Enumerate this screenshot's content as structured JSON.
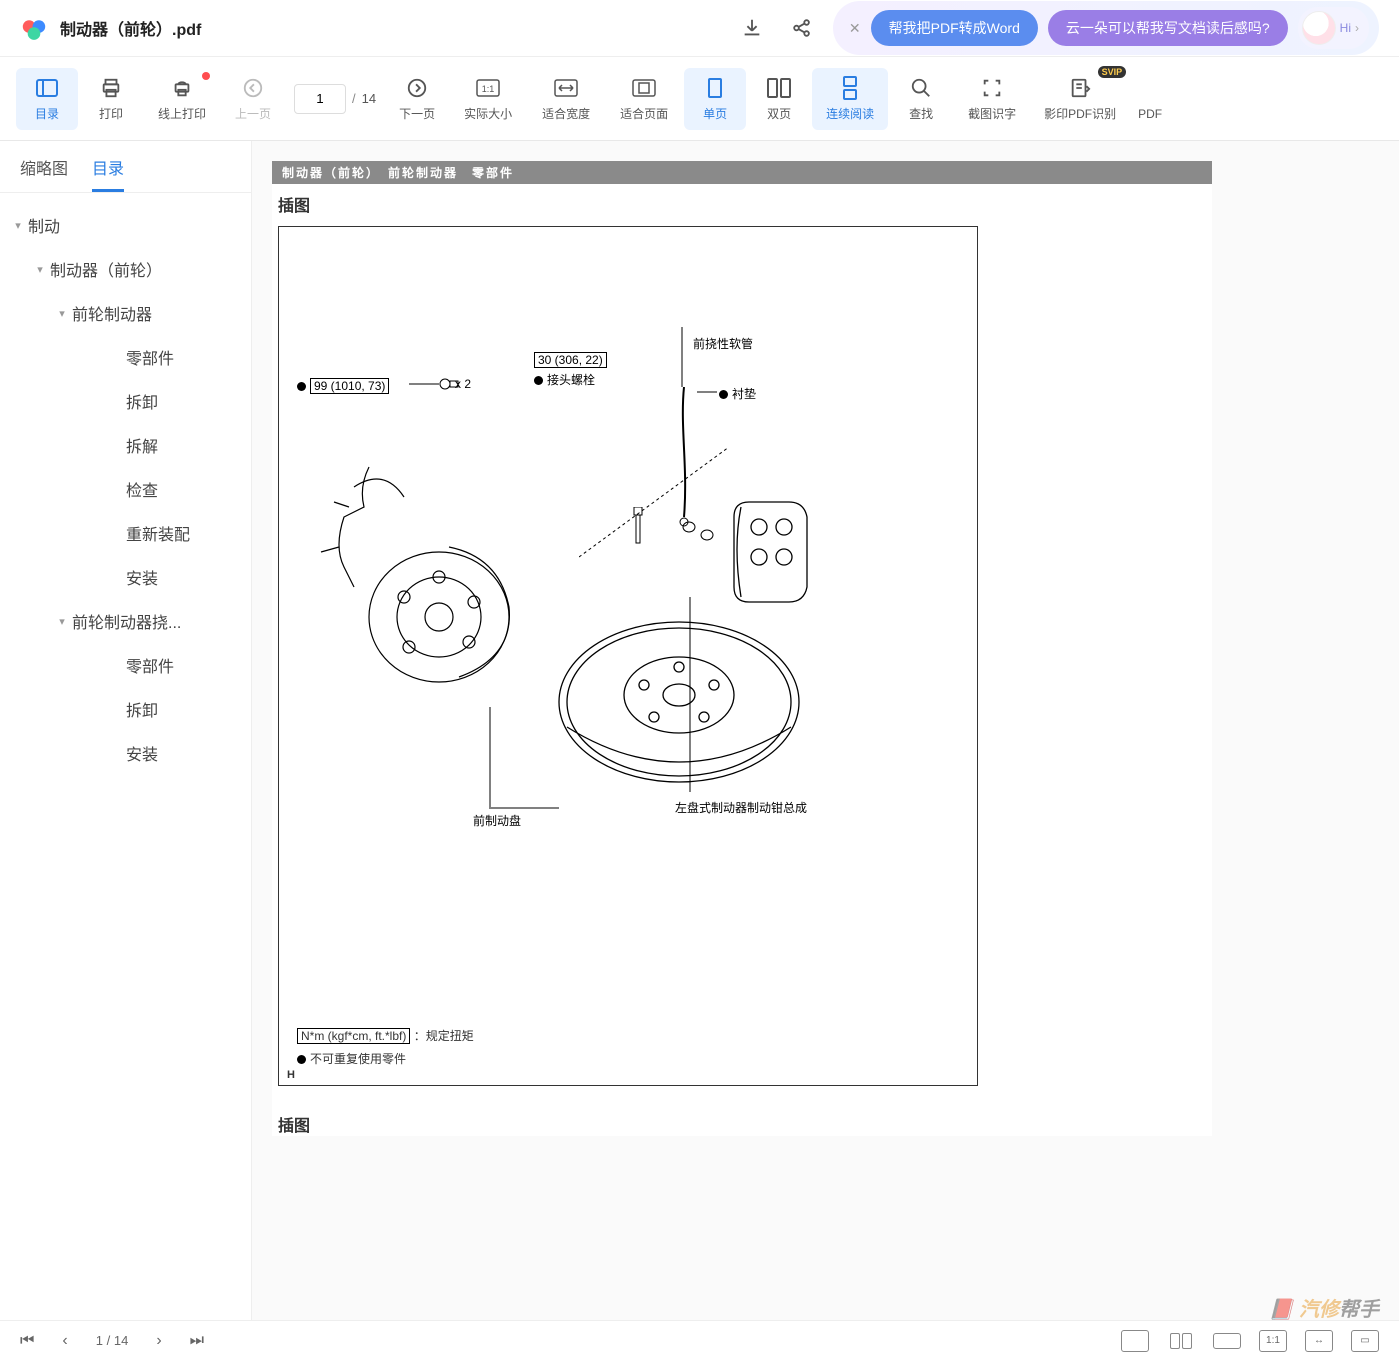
{
  "titlebar": {
    "filename": "制动器（前轮）.pdf",
    "promo1": "帮我把PDF转成Word",
    "promo2": "云一朵可以帮我写文档读后感吗?",
    "hi": "Hi"
  },
  "toolbar": {
    "items": [
      {
        "id": "outline",
        "label": "目录",
        "active": true
      },
      {
        "id": "print",
        "label": "打印"
      },
      {
        "id": "online-print",
        "label": "线上打印",
        "reddot": true
      },
      {
        "id": "prev",
        "label": "上一页",
        "disabled": true
      },
      {
        "id": "next",
        "label": "下一页"
      },
      {
        "id": "actual",
        "label": "实际大小"
      },
      {
        "id": "fitw",
        "label": "适合宽度"
      },
      {
        "id": "fitp",
        "label": "适合页面"
      },
      {
        "id": "single",
        "label": "单页",
        "active": true
      },
      {
        "id": "double",
        "label": "双页"
      },
      {
        "id": "cont",
        "label": "连续阅读",
        "active": true
      },
      {
        "id": "find",
        "label": "查找"
      },
      {
        "id": "ocr",
        "label": "截图识字"
      },
      {
        "id": "scanpdf",
        "label": "影印PDF识别",
        "svip": "SVIP"
      },
      {
        "id": "pdfmore",
        "label": "PDF"
      }
    ],
    "page_current": "1",
    "page_sep": "/",
    "page_total": "14"
  },
  "sidebar": {
    "tabs": {
      "thumb": "缩略图",
      "outline": "目录"
    },
    "outline": [
      {
        "level": 0,
        "label": "制动",
        "caret": true
      },
      {
        "level": 1,
        "label": "制动器（前轮）",
        "caret": true
      },
      {
        "level": 2,
        "label": "前轮制动器",
        "caret": true
      },
      {
        "level": 3,
        "label": "零部件"
      },
      {
        "level": 3,
        "label": "拆卸"
      },
      {
        "level": 3,
        "label": "拆解"
      },
      {
        "level": 3,
        "label": "检查"
      },
      {
        "level": 3,
        "label": "重新装配"
      },
      {
        "level": 3,
        "label": "安装"
      },
      {
        "level": 2,
        "label": "前轮制动器挠...",
        "caret": true
      },
      {
        "level": 3,
        "label": "零部件"
      },
      {
        "level": 3,
        "label": "拆卸"
      },
      {
        "level": 3,
        "label": "安装"
      }
    ]
  },
  "document": {
    "header_bar": "制动器（前轮）　前轮制动器　零部件",
    "section_title_1": "插图",
    "section_title_2": "插图",
    "labels": {
      "torque1": "99 (1010, 73)",
      "x2": "x 2",
      "torque2": "30 (306, 22)",
      "joint_bolt": "接头螺栓",
      "flex_hose": "前挠性软管",
      "gasket": "衬垫",
      "caliper": "左盘式制动器制动钳总成",
      "disc": "前制动盘",
      "legend_unit": "N*m (kgf*cm, ft.*lbf)",
      "legend_torque": "：规定扭矩",
      "legend_noreusable": "不可重复使用零件",
      "pagecode": "H"
    }
  },
  "bottombar": {
    "page_current": "1",
    "page_sep": "/",
    "page_total": "14",
    "view_11": "1:1"
  },
  "watermark": {
    "pre": "汽修",
    "post": "帮手"
  }
}
